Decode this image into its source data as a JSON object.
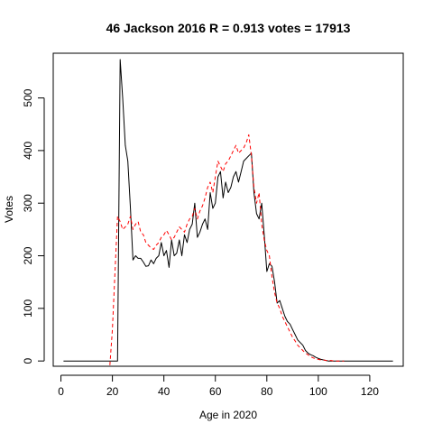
{
  "chart_data": {
    "type": "line",
    "title": "46 Jackson 2016 R = 0.913 votes = 17913",
    "xlabel": "Age in 2020",
    "ylabel": "Votes",
    "xlim": [
      -3,
      133
    ],
    "ylim": [
      -10,
      585
    ],
    "xticks": [
      0,
      20,
      40,
      60,
      80,
      100,
      120
    ],
    "yticks": [
      0,
      100,
      200,
      300,
      400,
      500
    ],
    "grid": false,
    "legend": "none",
    "series": [
      {
        "style": "solid",
        "color": "#000000",
        "x": [
          1,
          2,
          3,
          4,
          5,
          6,
          7,
          8,
          9,
          10,
          11,
          12,
          13,
          14,
          15,
          16,
          17,
          18,
          19,
          20,
          21,
          22,
          23,
          24,
          25,
          26,
          27,
          28,
          29,
          30,
          31,
          32,
          33,
          34,
          35,
          36,
          37,
          38,
          39,
          40,
          41,
          42,
          43,
          44,
          45,
          46,
          47,
          48,
          49,
          50,
          51,
          52,
          53,
          54,
          55,
          56,
          57,
          58,
          59,
          60,
          61,
          62,
          63,
          64,
          65,
          66,
          67,
          68,
          69,
          70,
          71,
          72,
          73,
          74,
          75,
          76,
          77,
          78,
          79,
          80,
          81,
          82,
          83,
          84,
          85,
          86,
          87,
          88,
          89,
          90,
          91,
          92,
          93,
          94,
          95,
          96,
          97,
          98,
          99,
          100,
          101,
          102,
          103,
          104,
          105,
          106,
          107,
          108,
          109,
          110,
          111,
          112,
          113,
          114,
          115,
          116,
          117,
          118,
          119,
          120,
          121,
          122,
          123,
          124,
          125,
          126,
          127,
          128,
          129
        ],
        "y": [
          0,
          0,
          0,
          0,
          0,
          0,
          0,
          0,
          0,
          0,
          0,
          0,
          0,
          0,
          0,
          0,
          0,
          0,
          0,
          0,
          0,
          0,
          573,
          500,
          410,
          380,
          290,
          192,
          200,
          195,
          195,
          188,
          180,
          181,
          192,
          185,
          195,
          200,
          225,
          200,
          210,
          178,
          230,
          200,
          205,
          230,
          200,
          240,
          225,
          250,
          260,
          300,
          235,
          245,
          260,
          270,
          250,
          320,
          290,
          300,
          350,
          360,
          310,
          340,
          320,
          330,
          350,
          360,
          340,
          360,
          380,
          385,
          390,
          395,
          320,
          280,
          270,
          300,
          240,
          170,
          185,
          180,
          150,
          110,
          115,
          100,
          85,
          75,
          70,
          60,
          50,
          40,
          35,
          30,
          20,
          15,
          12,
          10,
          7,
          5,
          3,
          2,
          1,
          0,
          0,
          0,
          0,
          0,
          0,
          0,
          0,
          0,
          0,
          0,
          0,
          0,
          0,
          0,
          0,
          0,
          0,
          0,
          0,
          0,
          0,
          0,
          0,
          0,
          0
        ]
      },
      {
        "style": "dashed",
        "color": "#ff0000",
        "x": [
          19,
          20,
          21,
          22,
          23,
          24,
          25,
          26,
          27,
          28,
          29,
          30,
          31,
          32,
          33,
          34,
          35,
          36,
          37,
          38,
          39,
          40,
          41,
          42,
          43,
          44,
          45,
          46,
          47,
          48,
          49,
          50,
          51,
          52,
          53,
          54,
          55,
          56,
          57,
          58,
          59,
          60,
          61,
          62,
          63,
          64,
          65,
          66,
          67,
          68,
          69,
          70,
          71,
          72,
          73,
          74,
          75,
          76,
          77,
          78,
          79,
          80,
          81,
          82,
          83,
          84,
          85,
          86,
          87,
          88,
          89,
          90,
          91,
          92,
          93,
          94,
          95,
          96,
          97,
          98,
          99,
          100,
          101,
          102,
          103,
          104,
          105,
          106,
          107,
          108,
          109,
          110
        ],
        "y": [
          -8,
          60,
          170,
          275,
          265,
          250,
          255,
          260,
          275,
          250,
          260,
          265,
          245,
          240,
          225,
          220,
          215,
          212,
          220,
          225,
          235,
          240,
          248,
          240,
          230,
          235,
          245,
          255,
          250,
          245,
          260,
          270,
          275,
          290,
          270,
          285,
          295,
          310,
          330,
          340,
          320,
          350,
          380,
          370,
          360,
          375,
          380,
          390,
          400,
          410,
          395,
          400,
          405,
          415,
          430,
          390,
          330,
          300,
          320,
          260,
          230,
          210,
          200,
          160,
          130,
          110,
          100,
          85,
          75,
          65,
          55,
          45,
          38,
          30,
          25,
          20,
          15,
          12,
          8,
          6,
          4,
          3,
          2,
          2,
          1,
          1,
          1,
          0,
          0,
          0,
          0,
          0
        ]
      }
    ]
  }
}
